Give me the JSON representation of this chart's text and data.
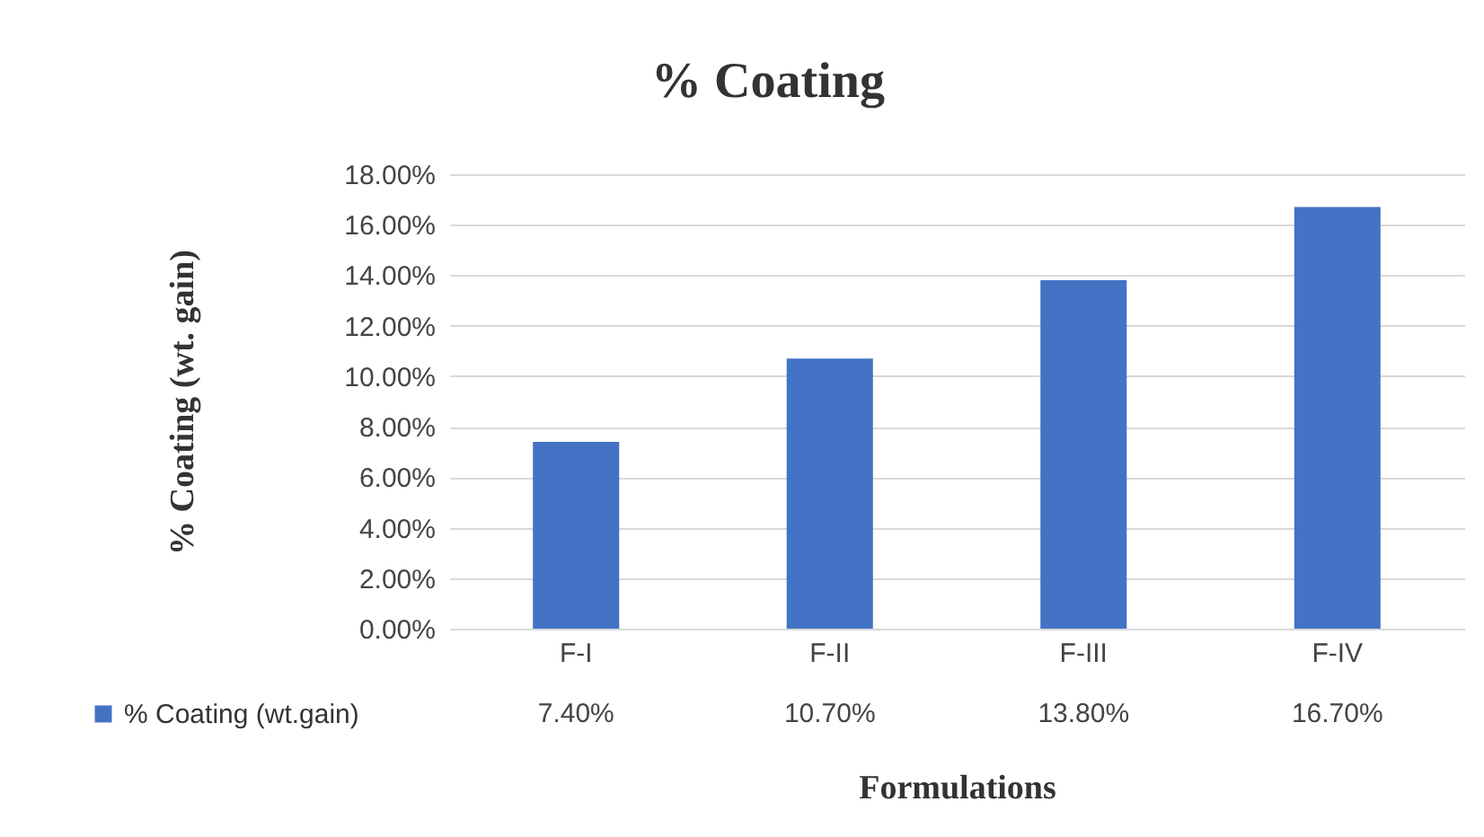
{
  "chart_data": {
    "type": "bar",
    "title": "% Coating",
    "xlabel": "Formulations",
    "ylabel": "% Coating (wt. gain)",
    "categories": [
      "F-I",
      "F-II",
      "F-III",
      "F-IV"
    ],
    "series": [
      {
        "name": "% Coating (wt.gain)",
        "color": "#4472c4",
        "values": [
          7.4,
          10.7,
          13.8,
          16.7
        ],
        "value_labels": [
          "7.40%",
          "10.70%",
          "13.80%",
          "16.70%"
        ]
      }
    ],
    "ylim": [
      0,
      18
    ],
    "yticks": [
      {
        "value": 0,
        "label": "0.00%"
      },
      {
        "value": 2,
        "label": "2.00%"
      },
      {
        "value": 4,
        "label": "4.00%"
      },
      {
        "value": 6,
        "label": "6.00%"
      },
      {
        "value": 8,
        "label": "8.00%"
      },
      {
        "value": 10,
        "label": "10.00%"
      },
      {
        "value": 12,
        "label": "12.00%"
      },
      {
        "value": 14,
        "label": "14.00%"
      },
      {
        "value": 16,
        "label": "16.00%"
      },
      {
        "value": 18,
        "label": "18.00%"
      }
    ],
    "grid": "y",
    "legend": "bottom left"
  }
}
